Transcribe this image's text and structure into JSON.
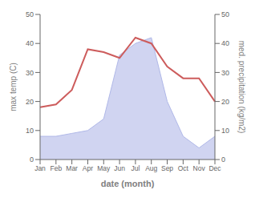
{
  "chart_data": {
    "type": "line",
    "xlabel": "date (month)",
    "ylabel": "max temp (C)",
    "y2label": "med. precipitation (kg/m2)",
    "categories": [
      "Jan",
      "Feb",
      "Mar",
      "Apr",
      "May",
      "Jun",
      "Jul",
      "Aug",
      "Sep",
      "Oct",
      "Nov",
      "Dec"
    ],
    "series": [
      {
        "type": "area",
        "axis": "y2",
        "color": "#b0b8e8",
        "values": [
          8,
          8,
          9,
          10,
          14,
          36,
          40,
          42,
          20,
          8,
          4,
          8
        ]
      },
      {
        "type": "line",
        "color": "#cd5c5c",
        "values": [
          18,
          19,
          24,
          38,
          37,
          35,
          42,
          40,
          32,
          28,
          28,
          20
        ]
      }
    ],
    "ylim": [
      0,
      50
    ],
    "yticks": [
      0,
      10,
      20,
      30,
      40,
      50
    ],
    "y2lim": [
      0,
      50
    ],
    "y2ticks": [
      0,
      10,
      20,
      30,
      40,
      50
    ],
    "grid": false
  }
}
